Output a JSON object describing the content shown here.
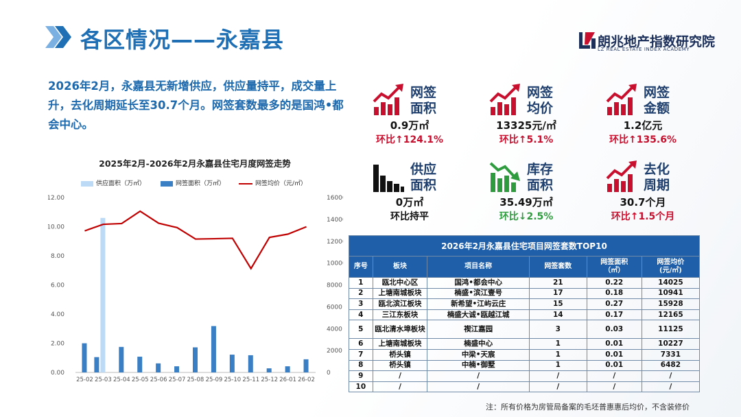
{
  "header": {
    "title": "各区情况——永嘉县",
    "logo_cn": "朗兆地产指数研究院",
    "logo_en": "LZ REAL ESTATE INDEX ACADEMY"
  },
  "summary": "2026年2月，永嘉县无新增供应，供应量持平，成交量上升，去化周期延长至30.7个月。网签套数最多的是国鸿•都会中心。",
  "kpis": [
    {
      "label1": "网签",
      "label2": "面积",
      "value": "0.9万㎡",
      "change": "环比↑124.1%",
      "dir": "up",
      "icon": "rising-chart-icon"
    },
    {
      "label1": "网签",
      "label2": "均价",
      "value": "13325元/㎡",
      "change": "环比↑5.1%",
      "dir": "up",
      "icon": "rising-chart-icon"
    },
    {
      "label1": "网签",
      "label2": "金额",
      "value": "1.2亿元",
      "change": "环比↑135.6%",
      "dir": "up",
      "icon": "rising-chart-icon"
    },
    {
      "label1": "供应",
      "label2": "面积",
      "value": "0万㎡",
      "change": "环比持平",
      "dir": "flat",
      "icon": "flat-bar-chart-icon"
    },
    {
      "label1": "库存",
      "label2": "面积",
      "value": "35.49万㎡",
      "change": "环比↓2.5%",
      "dir": "down",
      "icon": "falling-chart-icon"
    },
    {
      "label1": "去化",
      "label2": "周期",
      "value": "30.7个月",
      "change": "环比↑1.5个月",
      "dir": "up",
      "icon": "rising-chart-icon"
    }
  ],
  "colors": {
    "title": "#1f6fb5",
    "up": "#c8102e",
    "down": "#2e9c3e",
    "table_header": "#1f5ea8",
    "supply_bar": "#bcd9f5",
    "sign_bar": "#3a7fc4",
    "price_line": "#c00000"
  },
  "chart_data": {
    "type": "bar",
    "title": "2025年2月-2026年2月永嘉县住宅月度网签走势",
    "categories": [
      "25-02",
      "25-03",
      "25-04",
      "25-05",
      "25-06",
      "25-07",
      "25-08",
      "25-09",
      "25-10",
      "25-11",
      "25-12",
      "26-01",
      "26-02"
    ],
    "series": [
      {
        "name": "供应面积（万㎡）",
        "type": "bar",
        "axis": "left",
        "values": [
          0,
          10.6,
          0,
          0,
          0,
          0,
          0,
          0,
          0,
          0,
          0,
          0,
          0
        ]
      },
      {
        "name": "网签面积（万㎡）",
        "type": "bar",
        "axis": "left",
        "values": [
          2.0,
          1.05,
          1.75,
          1.08,
          0.62,
          0.42,
          1.72,
          3.18,
          1.22,
          1.18,
          0.28,
          0.42,
          0.9
        ]
      },
      {
        "name": "网签均价（元/㎡）",
        "type": "line",
        "axis": "right",
        "values": [
          12950,
          13550,
          13620,
          14750,
          13650,
          13250,
          12200,
          12230,
          12270,
          9500,
          12350,
          12650,
          13325
        ]
      }
    ],
    "y_left": {
      "ticks": [
        "0.00",
        "2.00",
        "4.00",
        "6.00",
        "8.00",
        "10.00",
        "12.00"
      ],
      "ylim": [
        0,
        12
      ]
    },
    "y_right": {
      "ticks": [
        "0",
        "2000",
        "4000",
        "6000",
        "8000",
        "10000",
        "12000",
        "14000",
        "16000"
      ],
      "ylim": [
        0,
        16000
      ]
    },
    "legend": "top"
  },
  "table": {
    "caption": "2026年2月永嘉县住宅项目网签套数TOP10",
    "headers": [
      "序号",
      "板块",
      "项目名称",
      "网签套数",
      "网签面积\n（㎡）",
      "网签均价\n(元/㎡)"
    ],
    "rows": [
      [
        "1",
        "瓯北中心区",
        "国鸿•都会中心",
        "21",
        "0.22",
        "14025"
      ],
      [
        "2",
        "上塘南城板块",
        "楠盛•滨江壹号",
        "17",
        "0.18",
        "10941"
      ],
      [
        "3",
        "瓯北滨江板块",
        "新希望•江屿云庄",
        "15",
        "0.27",
        "15928"
      ],
      [
        "4",
        "三江东板块",
        "楠盛大诚•瓯越江城",
        "14",
        "0.17",
        "12165"
      ],
      [
        "5",
        "瓯北清水埠板块",
        "禊江嘉园",
        "3",
        "0.03",
        "11125"
      ],
      [
        "6",
        "上塘南城板块",
        "楠盛中心",
        "1",
        "0.01",
        "10227"
      ],
      [
        "7",
        "桥头镇",
        "中梁•天宸",
        "1",
        "0.01",
        "7331"
      ],
      [
        "8",
        "桥头镇",
        "中楠•御墅",
        "1",
        "0.01",
        "6482"
      ],
      [
        "9",
        "/",
        "/",
        "/",
        "/",
        "/"
      ],
      [
        "10",
        "/",
        "/",
        "/",
        "/",
        "/"
      ]
    ]
  },
  "note": "注：所有价格为房管局备案的毛坯普惠惠后均价，不含装修价"
}
